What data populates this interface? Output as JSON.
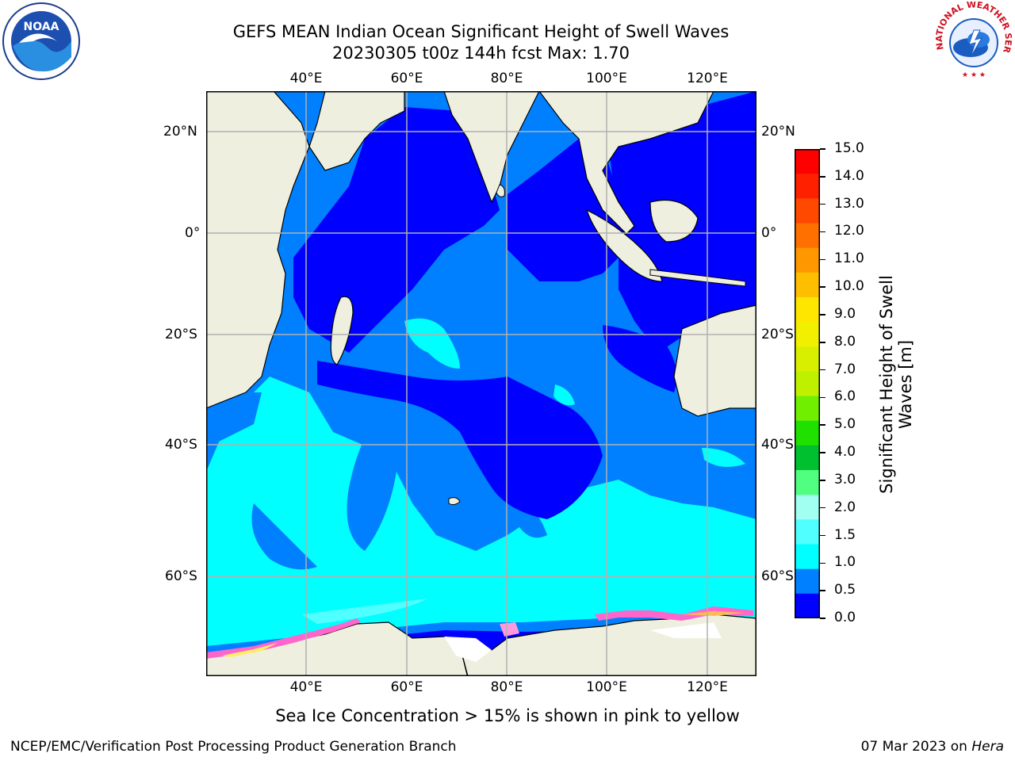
{
  "title_line1": "GEFS MEAN Indian Ocean Significant Height of Swell Waves",
  "title_line2": "20230305 t00z 144h fcst   Max: 1.70",
  "subtitle": "Sea Ice Concentration > 15% is shown in pink to yellow",
  "footer_left": "NCEP/EMC/Verification Post Processing Product Generation Branch",
  "footer_right_prefix": "07 Mar 2023 on ",
  "footer_right_host": "Hera",
  "logos": {
    "left": "noaa-logo",
    "right": "national-weather-service-logo",
    "left_text": "NOAA",
    "right_text": "NATIONAL WEATHER SERVICE"
  },
  "map": {
    "lon_labels": [
      "40°E",
      "60°E",
      "80°E",
      "100°E",
      "120°E"
    ],
    "lat_labels": [
      "20°N",
      "0°",
      "20°S",
      "40°S",
      "60°S"
    ],
    "land_color": "#efefe0",
    "ocean_colors": {
      "lt_0_5": "#0000ff",
      "0_5_1": "#0080ff",
      "1_1_5": "#00ffff"
    }
  },
  "colorbar": {
    "label_line1": "Significant Height of Swell",
    "label_line2": "Waves [m]",
    "ticks": [
      "15.0",
      "14.0",
      "13.0",
      "12.0",
      "11.0",
      "10.0",
      "9.0",
      "8.0",
      "7.0",
      "6.0",
      "5.0",
      "4.0",
      "3.0",
      "2.0",
      "1.5",
      "1.0",
      "0.5",
      "0.0"
    ],
    "colors_top_to_bottom": [
      "#ff0000",
      "#ff2000",
      "#ff4800",
      "#ff7000",
      "#ff9800",
      "#ffbf00",
      "#ffe600",
      "#f0f000",
      "#d8f000",
      "#bff000",
      "#70f000",
      "#20e000",
      "#00c030",
      "#50ff80",
      "#a0fff0",
      "#50ffff",
      "#00ffff",
      "#0080ff",
      "#0000ff"
    ]
  }
}
